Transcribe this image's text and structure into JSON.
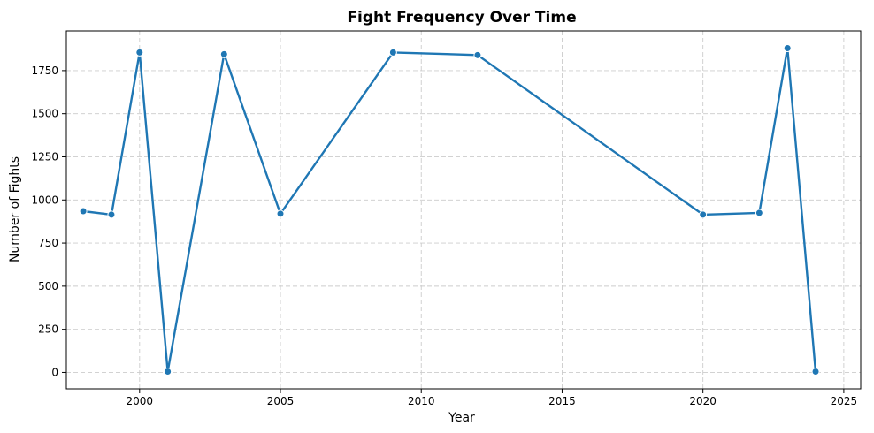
{
  "chart_data": {
    "type": "line",
    "title": "Fight Frequency Over Time",
    "xlabel": "Year",
    "ylabel": "Number of Fights",
    "xlim": [
      1997.4,
      2025.6
    ],
    "ylim": [
      -95,
      1980
    ],
    "xticks": [
      2000,
      2005,
      2010,
      2015,
      2020,
      2025
    ],
    "yticks": [
      0,
      250,
      500,
      750,
      1000,
      1250,
      1500,
      1750
    ],
    "grid": true,
    "series": [
      {
        "color": "#1f77b4",
        "points": [
          {
            "x": 1998,
            "y": 935
          },
          {
            "x": 1999,
            "y": 915
          },
          {
            "x": 2000,
            "y": 1855
          },
          {
            "x": 2001,
            "y": 5
          },
          {
            "x": 2003,
            "y": 1845
          },
          {
            "x": 2005,
            "y": 920
          },
          {
            "x": 2009,
            "y": 1855
          },
          {
            "x": 2012,
            "y": 1840
          },
          {
            "x": 2020,
            "y": 915
          },
          {
            "x": 2022,
            "y": 925
          },
          {
            "x": 2023,
            "y": 1880
          },
          {
            "x": 2024,
            "y": 5
          }
        ]
      }
    ]
  }
}
